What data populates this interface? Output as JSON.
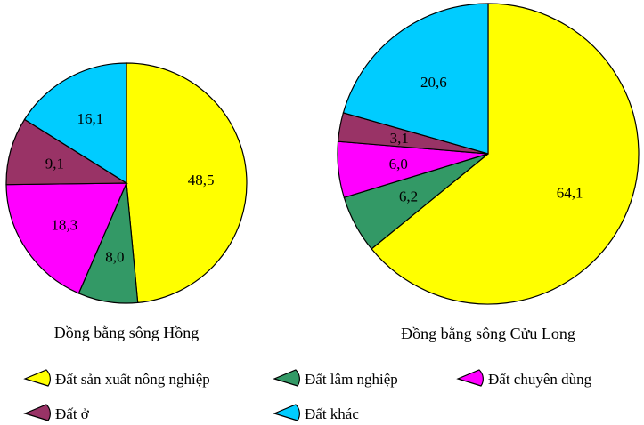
{
  "chart_data": [
    {
      "type": "pie",
      "title": "Đồng bằng sông Hồng",
      "categories": [
        "Đất sản xuất nông nghiệp",
        "Đất lâm nghiệp",
        "Đất chuyên dùng",
        "Đất ở",
        "Đất khác"
      ],
      "values": [
        48.5,
        8.0,
        18.3,
        9.1,
        16.1
      ],
      "value_labels": [
        "48,5",
        "8,0",
        "18,3",
        "9,1",
        "16,1"
      ],
      "colors": [
        "#ffff00",
        "#339966",
        "#ff00ff",
        "#993366",
        "#00ccff"
      ]
    },
    {
      "type": "pie",
      "title": "Đồng bằng sông Cửu Long",
      "categories": [
        "Đất sản xuất nông nghiệp",
        "Đất lâm nghiệp",
        "Đất chuyên dùng",
        "Đất ở",
        "Đất khác"
      ],
      "values": [
        64.1,
        6.2,
        6.0,
        3.1,
        20.6
      ],
      "value_labels": [
        "64,1",
        "6,2",
        "6,0",
        "3,1",
        "20,6"
      ],
      "colors": [
        "#ffff00",
        "#339966",
        "#ff00ff",
        "#993366",
        "#00ccff"
      ]
    }
  ],
  "legend": {
    "placement": "bottom",
    "items": [
      {
        "label": "Đất sản xuất nông nghiệp",
        "color": "#ffff00"
      },
      {
        "label": "Đất lâm nghiệp",
        "color": "#339966"
      },
      {
        "label": "Đất chuyên dùng",
        "color": "#ff00ff"
      },
      {
        "label": "Đất ở",
        "color": "#993366"
      },
      {
        "label": "Đất khác",
        "color": "#00ccff"
      }
    ]
  }
}
